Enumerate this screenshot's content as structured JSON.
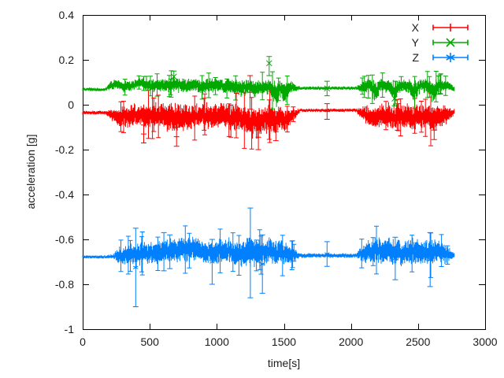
{
  "chart_data": {
    "type": "scatter",
    "style": "yerrorbars",
    "title": "",
    "xlabel": "time[s]",
    "ylabel": "acceleration [g]",
    "xlim": [
      0,
      3000
    ],
    "ylim": [
      -1,
      0.4
    ],
    "xticks": [
      0,
      500,
      1000,
      1500,
      2000,
      2500,
      3000
    ],
    "ytick_values": [
      0.4,
      0.2,
      0,
      -0.2,
      -0.4,
      -0.6,
      -0.8,
      -1
    ],
    "ytick_labels": [
      "0.4",
      "0.2",
      "0",
      "-0.2",
      "-0.4",
      "-0.6",
      "-0.8",
      "-1"
    ],
    "grid": false,
    "legend_position": "top-right-inside",
    "background": "#ffffff",
    "axis_color": "#000000",
    "text_color": "#1c1c1c",
    "t_end": 2770,
    "series": [
      {
        "name": "X",
        "color": "#ff0000",
        "marker": "plus",
        "seed": 1337,
        "envelope": [
          [
            0,
            -0.035,
            0.008
          ],
          [
            170,
            -0.035,
            0.008
          ],
          [
            210,
            -0.045,
            0.02
          ],
          [
            260,
            -0.055,
            0.035
          ],
          [
            310,
            -0.05,
            0.042
          ],
          [
            360,
            -0.048,
            0.045
          ],
          [
            420,
            -0.042,
            0.04
          ],
          [
            470,
            -0.055,
            0.05
          ],
          [
            520,
            -0.05,
            0.048
          ],
          [
            580,
            -0.045,
            0.045
          ],
          [
            640,
            -0.06,
            0.055
          ],
          [
            700,
            -0.065,
            0.06
          ],
          [
            760,
            -0.055,
            0.055
          ],
          [
            820,
            -0.05,
            0.05
          ],
          [
            880,
            -0.048,
            0.048
          ],
          [
            940,
            -0.052,
            0.05
          ],
          [
            1000,
            -0.05,
            0.052
          ],
          [
            1060,
            -0.055,
            0.05
          ],
          [
            1120,
            -0.06,
            0.055
          ],
          [
            1180,
            -0.055,
            0.052
          ],
          [
            1240,
            -0.07,
            0.06
          ],
          [
            1290,
            -0.075,
            0.065
          ],
          [
            1340,
            -0.065,
            0.06
          ],
          [
            1400,
            -0.06,
            0.055
          ],
          [
            1440,
            -0.075,
            0.055
          ],
          [
            1470,
            -0.06,
            0.05
          ],
          [
            1505,
            -0.07,
            0.05
          ],
          [
            1540,
            -0.05,
            0.04
          ],
          [
            1580,
            -0.04,
            0.02
          ],
          [
            1620,
            -0.025,
            0.007
          ],
          [
            2040,
            -0.025,
            0.007
          ],
          [
            2090,
            -0.04,
            0.03
          ],
          [
            2140,
            -0.05,
            0.045
          ],
          [
            2185,
            -0.06,
            0.05
          ],
          [
            2230,
            -0.045,
            0.045
          ],
          [
            2280,
            -0.05,
            0.048
          ],
          [
            2325,
            -0.06,
            0.052
          ],
          [
            2370,
            -0.045,
            0.045
          ],
          [
            2420,
            -0.05,
            0.048
          ],
          [
            2470,
            -0.06,
            0.052
          ],
          [
            2520,
            -0.048,
            0.046
          ],
          [
            2570,
            -0.052,
            0.048
          ],
          [
            2615,
            -0.065,
            0.055
          ],
          [
            2660,
            -0.05,
            0.045
          ],
          [
            2700,
            -0.045,
            0.04
          ],
          [
            2740,
            -0.038,
            0.025
          ],
          [
            2770,
            -0.032,
            0.012
          ]
        ],
        "outlier_bars": [
          {
            "t": 455,
            "lo": -0.17,
            "hi": -0.09
          },
          {
            "t": 700,
            "lo": -0.185,
            "hi": -0.1
          },
          {
            "t": 1248,
            "lo": -0.02,
            "hi": 0.13
          },
          {
            "t": 1310,
            "lo": -0.2,
            "hi": -0.09
          },
          {
            "t": 1440,
            "lo": -0.16,
            "hi": -0.08
          },
          {
            "t": 1822,
            "lo": -0.065,
            "hi": 0.005
          },
          {
            "t": 2620,
            "lo": -0.155,
            "hi": -0.07
          }
        ]
      },
      {
        "name": "Y",
        "color": "#00a800",
        "marker": "cross",
        "seed": 4242,
        "envelope": [
          [
            0,
            0.068,
            0.007
          ],
          [
            170,
            0.068,
            0.007
          ],
          [
            210,
            0.085,
            0.018
          ],
          [
            260,
            0.092,
            0.02
          ],
          [
            310,
            0.082,
            0.022
          ],
          [
            360,
            0.08,
            0.022
          ],
          [
            420,
            0.098,
            0.018
          ],
          [
            470,
            0.092,
            0.022
          ],
          [
            520,
            0.082,
            0.026
          ],
          [
            580,
            0.088,
            0.028
          ],
          [
            640,
            0.085,
            0.025
          ],
          [
            700,
            0.09,
            0.028
          ],
          [
            760,
            0.082,
            0.03
          ],
          [
            820,
            0.088,
            0.026
          ],
          [
            880,
            0.082,
            0.028
          ],
          [
            940,
            0.085,
            0.03
          ],
          [
            1000,
            0.088,
            0.026
          ],
          [
            1060,
            0.08,
            0.03
          ],
          [
            1120,
            0.082,
            0.028
          ],
          [
            1180,
            0.075,
            0.032
          ],
          [
            1240,
            0.08,
            0.03
          ],
          [
            1290,
            0.07,
            0.034
          ],
          [
            1340,
            0.082,
            0.028
          ],
          [
            1400,
            0.078,
            0.034
          ],
          [
            1440,
            0.05,
            0.055
          ],
          [
            1470,
            0.075,
            0.03
          ],
          [
            1505,
            0.048,
            0.05
          ],
          [
            1540,
            0.078,
            0.026
          ],
          [
            1580,
            0.075,
            0.015
          ],
          [
            1620,
            0.074,
            0.007
          ],
          [
            2040,
            0.074,
            0.007
          ],
          [
            2090,
            0.08,
            0.025
          ],
          [
            2140,
            0.085,
            0.028
          ],
          [
            2185,
            0.055,
            0.045
          ],
          [
            2230,
            0.088,
            0.024
          ],
          [
            2280,
            0.082,
            0.028
          ],
          [
            2325,
            0.06,
            0.042
          ],
          [
            2370,
            0.088,
            0.024
          ],
          [
            2420,
            0.085,
            0.026
          ],
          [
            2470,
            0.062,
            0.042
          ],
          [
            2520,
            0.088,
            0.026
          ],
          [
            2570,
            0.085,
            0.028
          ],
          [
            2615,
            0.058,
            0.045
          ],
          [
            2660,
            0.085,
            0.026
          ],
          [
            2700,
            0.088,
            0.024
          ],
          [
            2740,
            0.08,
            0.018
          ],
          [
            2770,
            0.072,
            0.01
          ]
        ],
        "outlier_bars": [
          {
            "t": 680,
            "lo": 0.1,
            "hi": 0.15
          },
          {
            "t": 1390,
            "lo": 0.13,
            "hi": 0.215,
            "v": 0.185
          },
          {
            "t": 1822,
            "lo": 0.04,
            "hi": 0.105
          },
          {
            "t": 2325,
            "lo": -0.005,
            "hi": 0.06
          }
        ]
      },
      {
        "name": "Z",
        "color": "#0080ff",
        "marker": "asterisk",
        "seed": 9001,
        "envelope": [
          [
            0,
            -0.678,
            0.007
          ],
          [
            170,
            -0.678,
            0.007
          ],
          [
            225,
            -0.676,
            0.009
          ],
          [
            260,
            -0.67,
            0.028
          ],
          [
            310,
            -0.668,
            0.035
          ],
          [
            360,
            -0.665,
            0.042
          ],
          [
            420,
            -0.668,
            0.045
          ],
          [
            470,
            -0.66,
            0.04
          ],
          [
            520,
            -0.662,
            0.042
          ],
          [
            580,
            -0.655,
            0.045
          ],
          [
            640,
            -0.65,
            0.048
          ],
          [
            700,
            -0.648,
            0.052
          ],
          [
            760,
            -0.645,
            0.05
          ],
          [
            820,
            -0.642,
            0.052
          ],
          [
            880,
            -0.655,
            0.045
          ],
          [
            940,
            -0.66,
            0.042
          ],
          [
            1000,
            -0.655,
            0.048
          ],
          [
            1060,
            -0.65,
            0.05
          ],
          [
            1120,
            -0.655,
            0.048
          ],
          [
            1180,
            -0.66,
            0.052
          ],
          [
            1240,
            -0.655,
            0.058
          ],
          [
            1290,
            -0.66,
            0.055
          ],
          [
            1340,
            -0.655,
            0.05
          ],
          [
            1400,
            -0.65,
            0.048
          ],
          [
            1440,
            -0.66,
            0.05
          ],
          [
            1470,
            -0.658,
            0.048
          ],
          [
            1505,
            -0.662,
            0.046
          ],
          [
            1540,
            -0.665,
            0.04
          ],
          [
            1580,
            -0.668,
            0.025
          ],
          [
            1620,
            -0.672,
            0.009
          ],
          [
            2040,
            -0.672,
            0.009
          ],
          [
            2090,
            -0.662,
            0.035
          ],
          [
            2140,
            -0.655,
            0.045
          ],
          [
            2185,
            -0.65,
            0.048
          ],
          [
            2230,
            -0.652,
            0.05
          ],
          [
            2280,
            -0.648,
            0.052
          ],
          [
            2325,
            -0.655,
            0.05
          ],
          [
            2370,
            -0.66,
            0.048
          ],
          [
            2420,
            -0.655,
            0.05
          ],
          [
            2470,
            -0.65,
            0.052
          ],
          [
            2520,
            -0.655,
            0.05
          ],
          [
            2570,
            -0.66,
            0.048
          ],
          [
            2615,
            -0.658,
            0.05
          ],
          [
            2660,
            -0.655,
            0.045
          ],
          [
            2700,
            -0.66,
            0.04
          ],
          [
            2740,
            -0.668,
            0.022
          ],
          [
            2770,
            -0.672,
            0.01
          ]
        ],
        "outlier_bars": [
          {
            "t": 395,
            "lo": -0.9,
            "hi": -0.55
          },
          {
            "t": 605,
            "lo": -0.74,
            "hi": -0.57
          },
          {
            "t": 650,
            "lo": -0.73,
            "hi": -0.58
          },
          {
            "t": 965,
            "lo": -0.8,
            "hi": -0.6
          },
          {
            "t": 1250,
            "lo": -0.86,
            "hi": -0.46
          },
          {
            "t": 1340,
            "lo": -0.84,
            "hi": -0.58
          },
          {
            "t": 1822,
            "lo": -0.72,
            "hi": -0.61
          },
          {
            "t": 2330,
            "lo": -0.78,
            "hi": -0.59
          },
          {
            "t": 2590,
            "lo": -0.81,
            "hi": -0.57
          }
        ]
      }
    ]
  }
}
